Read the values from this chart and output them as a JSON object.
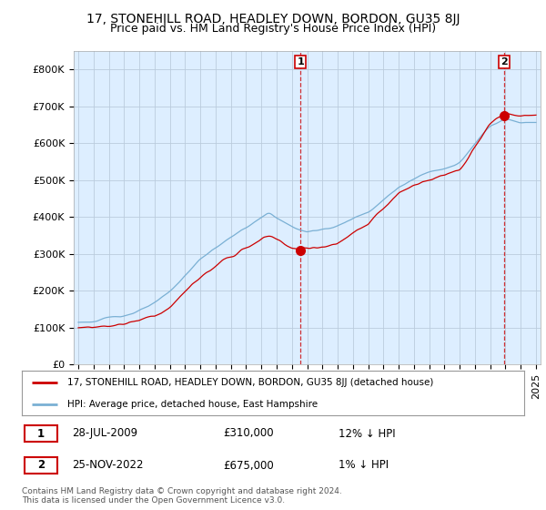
{
  "title": "17, STONEHILL ROAD, HEADLEY DOWN, BORDON, GU35 8JJ",
  "subtitle": "Price paid vs. HM Land Registry's House Price Index (HPI)",
  "ylim": [
    0,
    850000
  ],
  "yticks": [
    0,
    100000,
    200000,
    300000,
    400000,
    500000,
    600000,
    700000,
    800000
  ],
  "ytick_labels": [
    "£0",
    "£100K",
    "£200K",
    "£300K",
    "£400K",
    "£500K",
    "£600K",
    "£700K",
    "£800K"
  ],
  "sale1_date": 2009.57,
  "sale1_price": 310000,
  "sale2_date": 2022.9,
  "sale2_price": 675000,
  "line_red_color": "#cc0000",
  "line_blue_color": "#7ab0d4",
  "plot_bg_color": "#ddeeff",
  "grid_color": "#bbccdd",
  "background_color": "#ffffff",
  "legend_entry1": "17, STONEHILL ROAD, HEADLEY DOWN, BORDON, GU35 8JJ (detached house)",
  "legend_entry2": "HPI: Average price, detached house, East Hampshire",
  "table_row1": [
    "1",
    "28-JUL-2009",
    "£310,000",
    "12% ↓ HPI"
  ],
  "table_row2": [
    "2",
    "25-NOV-2022",
    "£675,000",
    "1% ↓ HPI"
  ],
  "footer": "Contains HM Land Registry data © Crown copyright and database right 2024.\nThis data is licensed under the Open Government Licence v3.0.",
  "title_fontsize": 10,
  "subtitle_fontsize": 9,
  "tick_fontsize": 8
}
